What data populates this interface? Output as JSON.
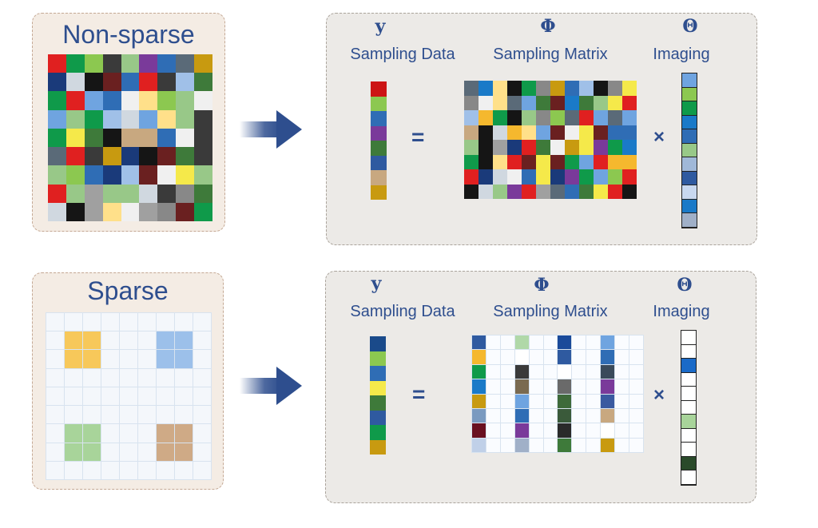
{
  "rows": [
    {
      "title": "Non-sparse",
      "symbols": {
        "y": "y",
        "phi": "Φ",
        "theta": "Θ"
      },
      "labels": {
        "y": "Sampling Data",
        "phi": "Sampling Matrix",
        "theta": "Imaging"
      },
      "operators": {
        "equals": "=",
        "times": "×"
      }
    },
    {
      "title": "Sparse",
      "symbols": {
        "y": "y",
        "phi": "Φ",
        "theta": "Θ"
      },
      "labels": {
        "y": "Sampling Data",
        "phi": "Sampling Matrix",
        "theta": "Imaging"
      },
      "operators": {
        "equals": "=",
        "times": "×"
      }
    }
  ],
  "colors": {
    "accent": "#2e4e8e",
    "arrow": "#2e4e8e"
  }
}
